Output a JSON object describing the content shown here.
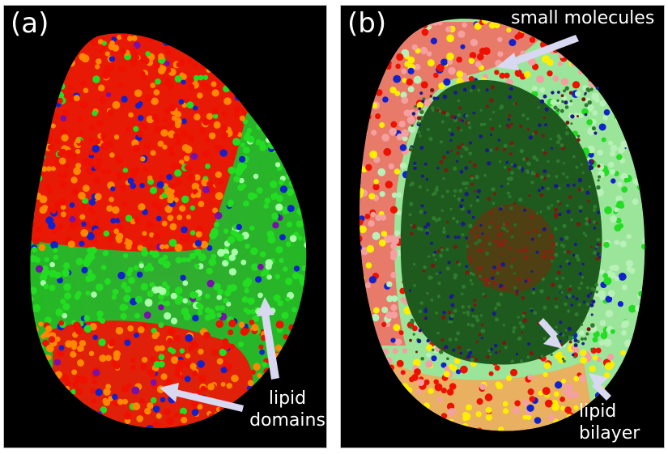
{
  "panel_a": {
    "label": "(a)",
    "annotation_lines": [
      "lipid",
      "domains"
    ]
  },
  "panel_b": {
    "label": "(b)",
    "annotation_small": "small molecules",
    "annotation_bilayer_lines": [
      "lipid",
      "bilayer"
    ]
  },
  "colors": {
    "background": "#000000",
    "lipid_green": "#22dd22",
    "lipid_red": "#ee1100",
    "lipid_orange": "#ff8800",
    "lipid_pink": "#f4a0a0",
    "lipid_yellow": "#ffee00",
    "molecule_blue": "#1122cc",
    "molecule_purple": "#7711aa",
    "arrow": "#d8d8f0"
  }
}
